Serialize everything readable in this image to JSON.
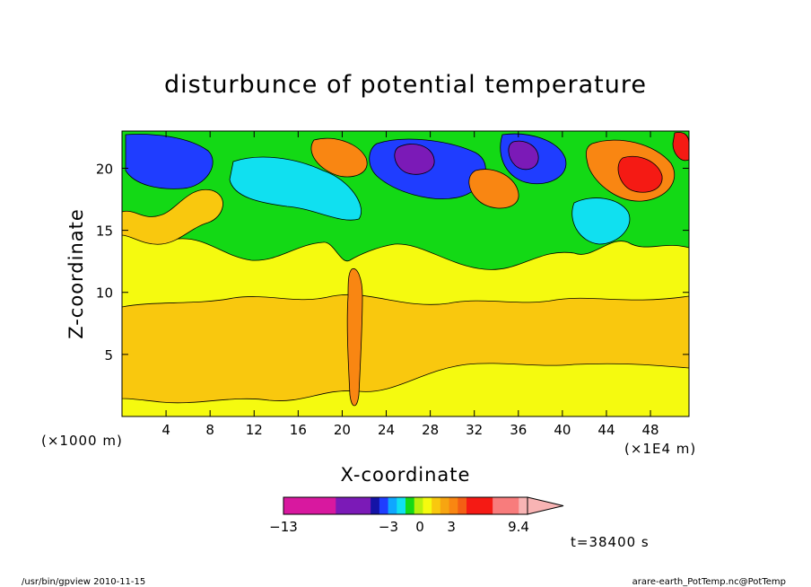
{
  "chart_data": {
    "type": "heatmap",
    "title": "disturbunce of potential temperature",
    "xlabel": "X-coordinate",
    "ylabel": "Z-coordinate",
    "x_unit_left": "(×1000 m)",
    "x_unit_right": "(×1E4 m)",
    "xlim": [
      0,
      51.5
    ],
    "ylim": [
      0,
      23
    ],
    "x_ticks": [
      4,
      8,
      12,
      16,
      20,
      24,
      28,
      32,
      36,
      40,
      44,
      48
    ],
    "y_ticks": [
      5,
      10,
      15,
      20
    ],
    "colorbar": {
      "colors": [
        "#d8189f",
        "#d8189f",
        "#d8189f",
        "#d8189f",
        "#d8189f",
        "#d8189f",
        "#7b1ab7",
        "#7b1ab7",
        "#7b1ab7",
        "#7b1ab7",
        "#1413a6",
        "#1f3dff",
        "#0fa7ff",
        "#10e0f0",
        "#13d915",
        "#b7f00e",
        "#f5fa0f",
        "#f9c80e",
        "#f7a511",
        "#f98612",
        "#f45f14",
        "#f51a14",
        "#f51a14",
        "#f51a14",
        "#f87c7c",
        "#f87c7c",
        "#f87c7c",
        "#f8b4b4"
      ],
      "tick_labels": [
        "−13",
        "−3",
        "0",
        "3",
        "9.4"
      ],
      "tick_values": [
        -13,
        -3,
        0,
        3,
        9.4
      ]
    },
    "time_label": "t=38400 s",
    "fields": {
      "regions": [
        {
          "band": "z 0–3",
          "value_range": "0 to 1",
          "color": "#f5fa0f"
        },
        {
          "band": "z 3–9",
          "value_range": "1 to 2",
          "color": "#f9c80e"
        },
        {
          "band": "z 9–14",
          "value_range": "0 to 1",
          "color": "#f5fa0f"
        },
        {
          "band": "z 14–23",
          "value_range": "-13 to 9.4",
          "description_colors": [
            "#13d915",
            "#10e0f0",
            "#1f3dff",
            "#1413a6",
            "#7b1ab7",
            "#f98612",
            "#f51a14"
          ]
        }
      ]
    }
  },
  "footer": {
    "left": "/usr/bin/gpview   2010-11-15",
    "right": "arare-earth_PotTemp.nc@PotTemp"
  }
}
